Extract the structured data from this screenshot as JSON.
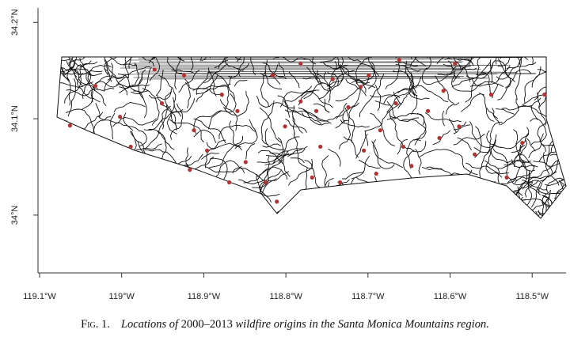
{
  "chart_data": {
    "type": "scatter",
    "caption": {
      "label": "Fig. 1.",
      "parts": [
        "Locations of ",
        "2000–2013",
        " wildfire origins in the Santa Monica Mountains region."
      ]
    },
    "xlim": [
      -119.1,
      -118.46
    ],
    "ylim": [
      33.94,
      34.215
    ],
    "xticks": [
      {
        "value": -119.1,
        "label": "119.1°W"
      },
      {
        "value": -119.0,
        "label": "119°W"
      },
      {
        "value": -118.9,
        "label": "118.9°W"
      },
      {
        "value": -118.8,
        "label": "118.8°W"
      },
      {
        "value": -118.7,
        "label": "118.7°W"
      },
      {
        "value": -118.6,
        "label": "118.6°W"
      },
      {
        "value": -118.5,
        "label": "118.5°W"
      }
    ],
    "yticks": [
      {
        "value": 34.0,
        "label": "34°N"
      },
      {
        "value": 34.1,
        "label": "34.1°N"
      },
      {
        "value": 34.2,
        "label": "34.2°N"
      }
    ],
    "color": "#b23333",
    "x": [
      -119.063,
      -119.002,
      -119.032,
      -118.989,
      -118.96,
      -118.924,
      -118.912,
      -118.896,
      -118.917,
      -118.878,
      -118.859,
      -118.849,
      -118.825,
      -118.811,
      -118.816,
      -118.801,
      -118.782,
      -118.763,
      -118.758,
      -118.768,
      -118.743,
      -118.724,
      -118.709,
      -118.699,
      -118.705,
      -118.685,
      -118.69,
      -118.666,
      -118.657,
      -118.647,
      -118.627,
      -118.613,
      -118.608,
      -118.589,
      -118.594,
      -118.57,
      -118.55,
      -118.531,
      -118.512,
      -118.485,
      -118.662,
      -118.782,
      -118.734,
      -118.869,
      -118.951
    ],
    "values": [
      34.093,
      34.102,
      34.134,
      34.071,
      34.151,
      34.145,
      34.088,
      34.067,
      34.047,
      34.125,
      34.108,
      34.055,
      34.034,
      34.014,
      34.145,
      34.092,
      34.118,
      34.108,
      34.071,
      34.039,
      34.141,
      34.112,
      34.133,
      34.145,
      34.067,
      34.088,
      34.043,
      34.116,
      34.071,
      34.051,
      34.108,
      34.08,
      34.129,
      34.092,
      34.157,
      34.063,
      34.125,
      34.039,
      34.075,
      34.125,
      34.161,
      34.157,
      34.034,
      34.034,
      34.116
    ]
  }
}
